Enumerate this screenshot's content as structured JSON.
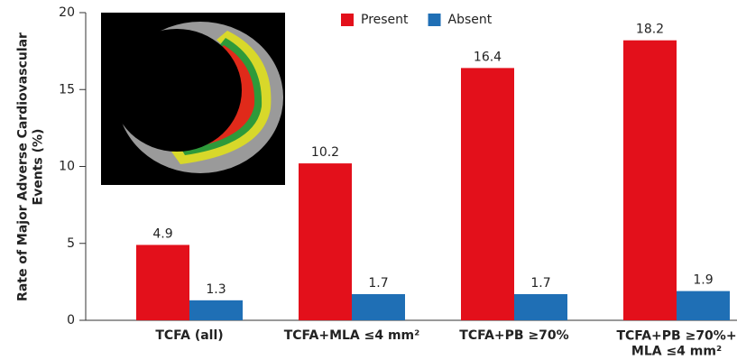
{
  "chart_data": {
    "type": "bar",
    "y_label": "Rate of Major Adverse Cardiovascular\nEvents (%)",
    "categories": [
      "TCFA (all)",
      "TCFA+MLA ≤4 mm²",
      "TCFA+PB ≥70%",
      "TCFA+PB ≥70%+\nMLA ≤4 mm²"
    ],
    "series": [
      {
        "name": "Present",
        "color": "#e3101b",
        "values": [
          4.9,
          10.2,
          16.4,
          18.2
        ]
      },
      {
        "name": "Absent",
        "color": "#1f6fb5",
        "values": [
          1.3,
          1.7,
          1.7,
          1.9
        ]
      }
    ],
    "ylim": [
      0,
      20
    ],
    "yticks": [
      0,
      5,
      10,
      15,
      20
    ],
    "legend": "top"
  }
}
